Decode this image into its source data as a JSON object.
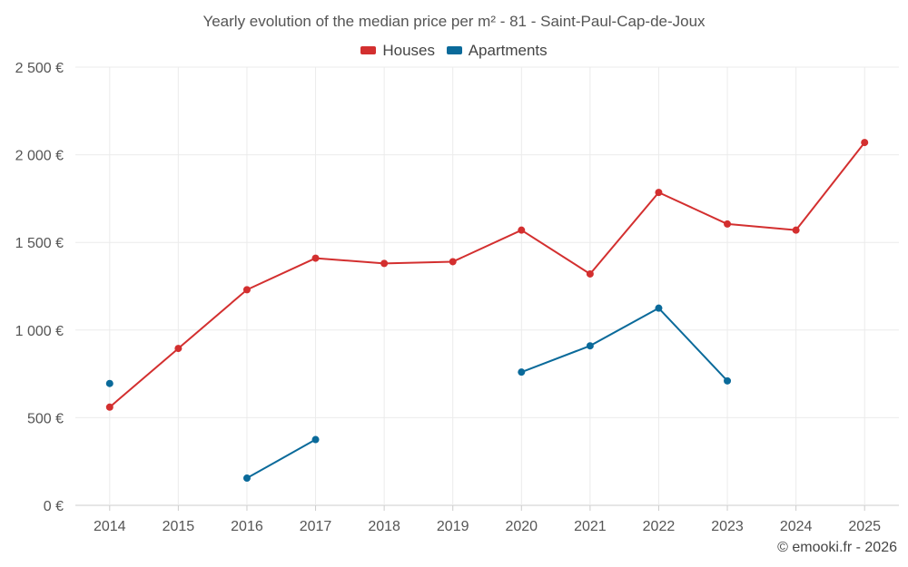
{
  "chart_data": {
    "type": "line",
    "title": "Yearly evolution of the median price per m² - 81 - Saint-Paul-Cap-de-Joux",
    "categories": [
      "2014",
      "2015",
      "2016",
      "2017",
      "2018",
      "2019",
      "2020",
      "2021",
      "2022",
      "2023",
      "2024",
      "2025"
    ],
    "ylim": [
      0,
      2500
    ],
    "yticks": [
      0,
      500,
      1000,
      1500,
      2000,
      2500
    ],
    "ytick_labels": [
      "0 €",
      "500 €",
      "1 000 €",
      "1 500 €",
      "2 000 €",
      "2 500 €"
    ],
    "xlabel": "",
    "ylabel": "",
    "grid": true,
    "legend_position": "top-center",
    "series": [
      {
        "name": "Houses",
        "color": "#d32f2f",
        "values": [
          560,
          895,
          1230,
          1410,
          1380,
          1390,
          1570,
          1320,
          1785,
          1605,
          1570,
          2070
        ]
      },
      {
        "name": "Apartments",
        "color": "#0a6a9a",
        "values": [
          695,
          null,
          155,
          375,
          null,
          null,
          760,
          910,
          1125,
          710,
          null,
          null
        ]
      }
    ]
  },
  "credit": "© emooki.fr - 2026"
}
